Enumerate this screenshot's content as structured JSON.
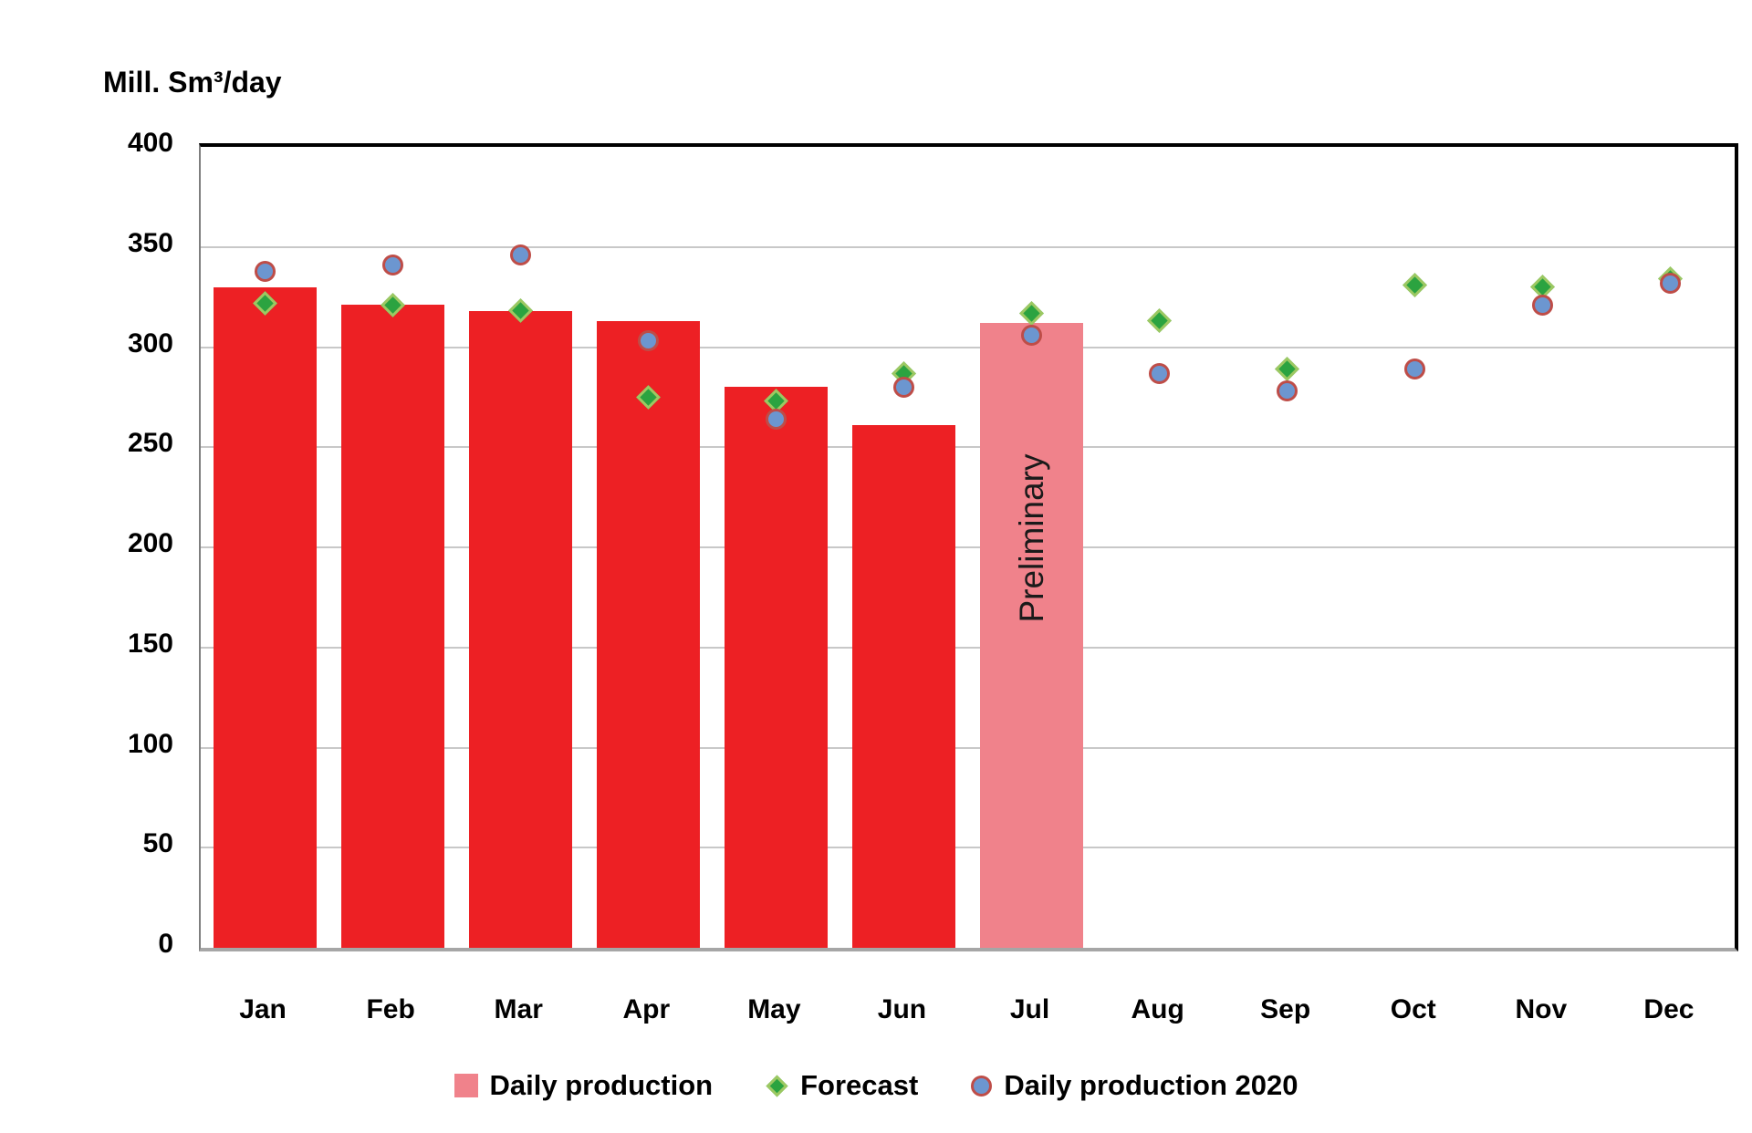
{
  "y_axis_title": "Mill. Sm³/day",
  "chart_data": {
    "type": "bar",
    "title": "",
    "xlabel": "",
    "ylabel": "Mill. Sm³/day",
    "ylim": [
      0,
      400
    ],
    "ytick_step": 50,
    "y_ticks": [
      0,
      50,
      100,
      150,
      200,
      250,
      300,
      350,
      400
    ],
    "grid": true,
    "legend_position": "bottom",
    "categories": [
      "Jan",
      "Feb",
      "Mar",
      "Apr",
      "May",
      "Jun",
      "Jul",
      "Aug",
      "Sep",
      "Oct",
      "Nov",
      "Dec"
    ],
    "series": [
      {
        "name": "Daily production",
        "type": "bar",
        "color": "#ED2024",
        "preliminary_color": "#F0828B",
        "preliminary_index": 6,
        "values": [
          330,
          321,
          318,
          313,
          280,
          261,
          312,
          null,
          null,
          null,
          null,
          null
        ]
      },
      {
        "name": "Forecast",
        "type": "scatter",
        "marker": "diamond",
        "fill": "#2BA340",
        "border": "#9DC862",
        "values": [
          322,
          321,
          318,
          275,
          273,
          287,
          317,
          313,
          289,
          331,
          330,
          334
        ]
      },
      {
        "name": "Daily production 2020",
        "type": "scatter",
        "marker": "circle",
        "fill": "#6C96D0",
        "border": "#BE4D48",
        "values": [
          338,
          341,
          346,
          303,
          264,
          280,
          306,
          287,
          278,
          289,
          321,
          332
        ]
      }
    ],
    "annotation": {
      "text": "Preliminary",
      "month": "Jul"
    }
  },
  "colors": {
    "gridline": "#C8C8C8",
    "axis_bottom": "#A6A6A6",
    "axis_left": "#7F7F7F",
    "frame": "#000000"
  }
}
